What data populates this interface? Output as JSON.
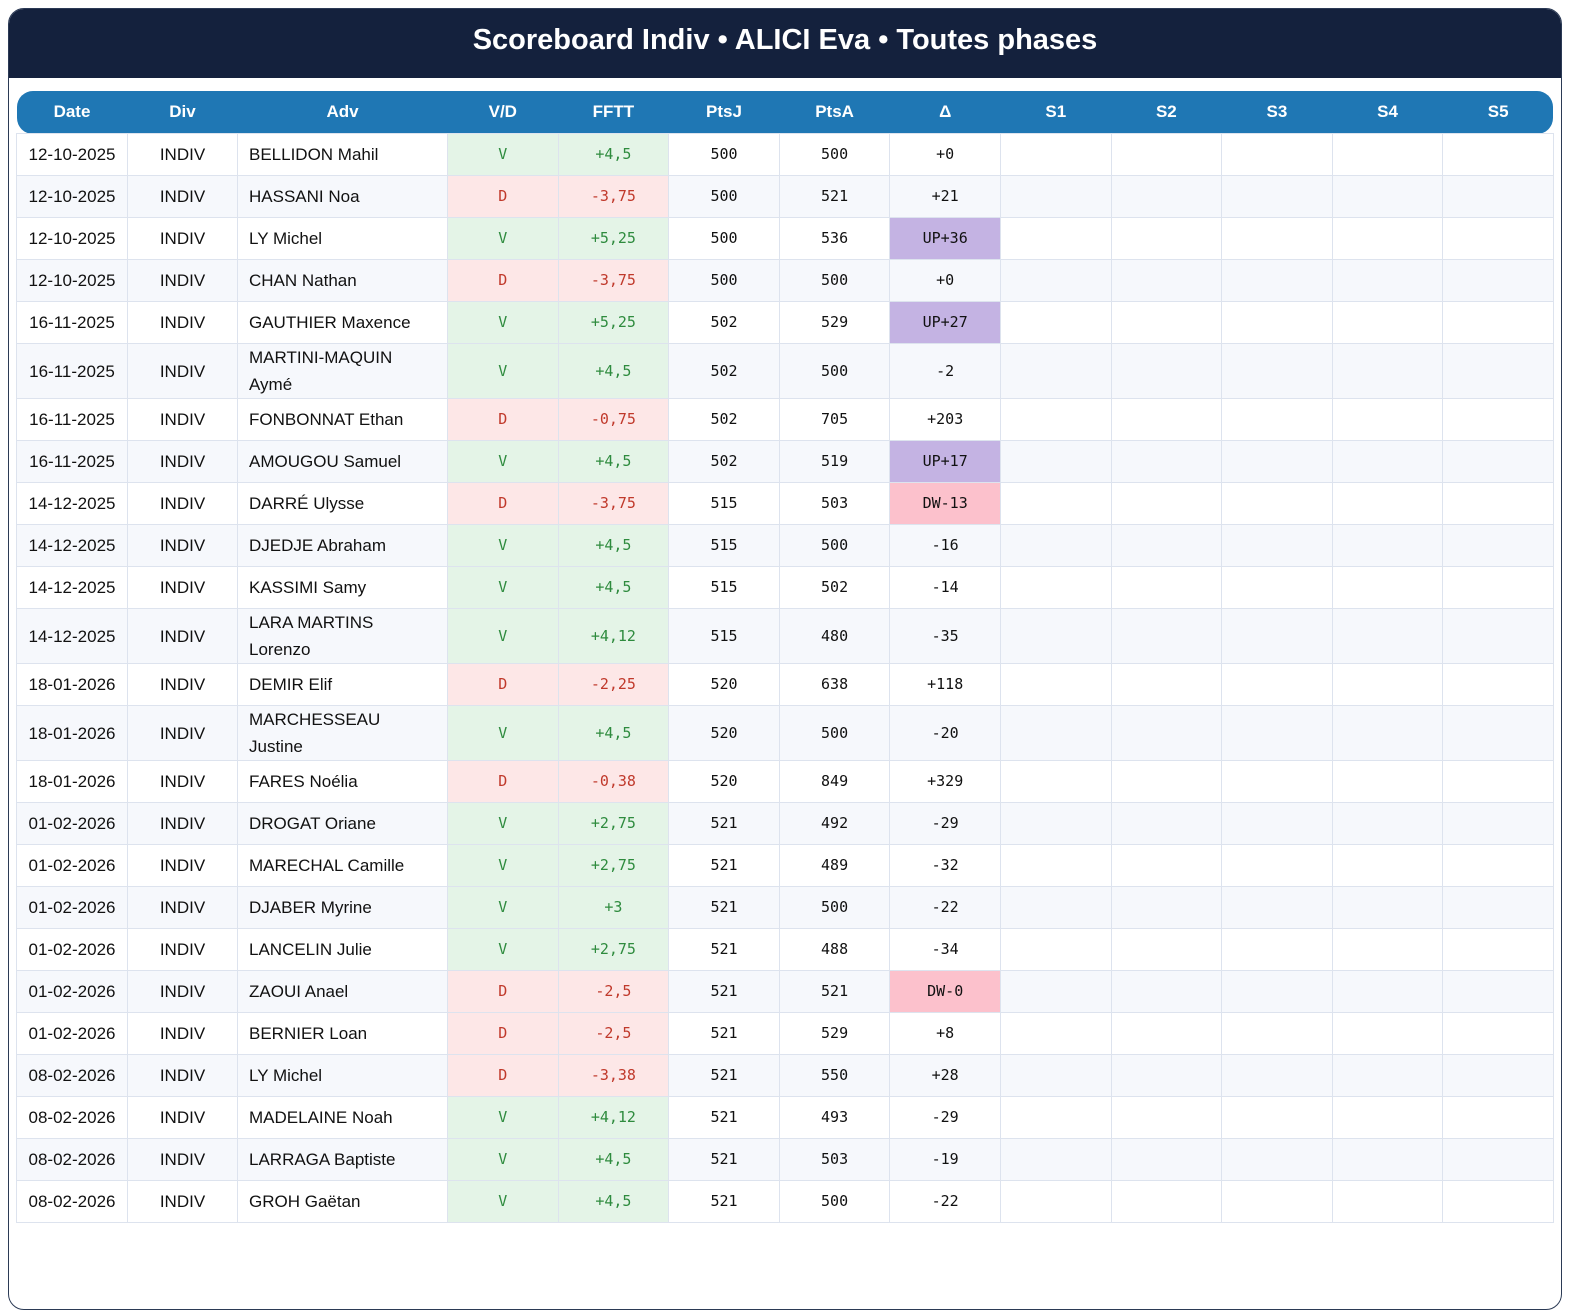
{
  "header": {
    "title": "Scoreboard Indiv • ALICI Eva • Toutes phases"
  },
  "table": {
    "columns": [
      "Date",
      "Div",
      "Adv",
      "V/D",
      "FFTT",
      "PtsJ",
      "PtsA",
      "Δ",
      "S1",
      "S2",
      "S3",
      "S4",
      "S5"
    ],
    "rows": [
      [
        "12-10-2025",
        "INDIV",
        "BELLIDON Mahil",
        "V",
        "+4,5",
        "500",
        "500",
        "+0"
      ],
      [
        "12-10-2025",
        "INDIV",
        "HASSANI Noa",
        "D",
        "-3,75",
        "500",
        "521",
        "+21"
      ],
      [
        "12-10-2025",
        "INDIV",
        "LY Michel",
        "V",
        "+5,25",
        "500",
        "536",
        "UP+36"
      ],
      [
        "12-10-2025",
        "INDIV",
        "CHAN Nathan",
        "D",
        "-3,75",
        "500",
        "500",
        "+0"
      ],
      [
        "16-11-2025",
        "INDIV",
        "GAUTHIER Maxence",
        "V",
        "+5,25",
        "502",
        "529",
        "UP+27"
      ],
      [
        "16-11-2025",
        "INDIV",
        "MARTINI-MAQUIN Aymé",
        "V",
        "+4,5",
        "502",
        "500",
        "-2"
      ],
      [
        "16-11-2025",
        "INDIV",
        "FONBONNAT Ethan",
        "D",
        "-0,75",
        "502",
        "705",
        "+203"
      ],
      [
        "16-11-2025",
        "INDIV",
        "AMOUGOU Samuel",
        "V",
        "+4,5",
        "502",
        "519",
        "UP+17"
      ],
      [
        "14-12-2025",
        "INDIV",
        "DARRÉ Ulysse",
        "D",
        "-3,75",
        "515",
        "503",
        "DW-13"
      ],
      [
        "14-12-2025",
        "INDIV",
        "DJEDJE Abraham",
        "V",
        "+4,5",
        "515",
        "500",
        "-16"
      ],
      [
        "14-12-2025",
        "INDIV",
        "KASSIMI Samy",
        "V",
        "+4,5",
        "515",
        "502",
        "-14"
      ],
      [
        "14-12-2025",
        "INDIV",
        "LARA MARTINS Lorenzo",
        "V",
        "+4,12",
        "515",
        "480",
        "-35"
      ],
      [
        "18-01-2026",
        "INDIV",
        "DEMIR Elif",
        "D",
        "-2,25",
        "520",
        "638",
        "+118"
      ],
      [
        "18-01-2026",
        "INDIV",
        "MARCHESSEAU Justine",
        "V",
        "+4,5",
        "520",
        "500",
        "-20"
      ],
      [
        "18-01-2026",
        "INDIV",
        "FARES Noélia",
        "D",
        "-0,38",
        "520",
        "849",
        "+329"
      ],
      [
        "01-02-2026",
        "INDIV",
        "DROGAT Oriane",
        "V",
        "+2,75",
        "521",
        "492",
        "-29"
      ],
      [
        "01-02-2026",
        "INDIV",
        "MARECHAL Camille",
        "V",
        "+2,75",
        "521",
        "489",
        "-32"
      ],
      [
        "01-02-2026",
        "INDIV",
        "DJABER Myrine",
        "V",
        "+3",
        "521",
        "500",
        "-22"
      ],
      [
        "01-02-2026",
        "INDIV",
        "LANCELIN Julie",
        "V",
        "+2,75",
        "521",
        "488",
        "-34"
      ],
      [
        "01-02-2026",
        "INDIV",
        "ZAOUI Anael",
        "D",
        "-2,5",
        "521",
        "521",
        "DW-0"
      ],
      [
        "01-02-2026",
        "INDIV",
        "BERNIER Loan",
        "D",
        "-2,5",
        "521",
        "529",
        "+8"
      ],
      [
        "08-02-2026",
        "INDIV",
        "LY Michel",
        "D",
        "-3,38",
        "521",
        "550",
        "+28"
      ],
      [
        "08-02-2026",
        "INDIV",
        "MADELAINE Noah",
        "V",
        "+4,12",
        "521",
        "493",
        "-29"
      ],
      [
        "08-02-2026",
        "INDIV",
        "LARRAGA Baptiste",
        "V",
        "+4,5",
        "521",
        "503",
        "-19"
      ],
      [
        "08-02-2026",
        "INDIV",
        "GROH Gaëtan",
        "V",
        "+4,5",
        "521",
        "500",
        "-22"
      ]
    ],
    "result_styles": {
      "V": {
        "bg": "#e4f4e7",
        "fg": "#2e8b3e"
      },
      "D": {
        "bg": "#fde7e7",
        "fg": "#c0392b"
      }
    },
    "delta_styles": {
      "UP": {
        "bg": "#c4b3e3"
      },
      "DW": {
        "bg": "#fcc1cc"
      }
    }
  }
}
